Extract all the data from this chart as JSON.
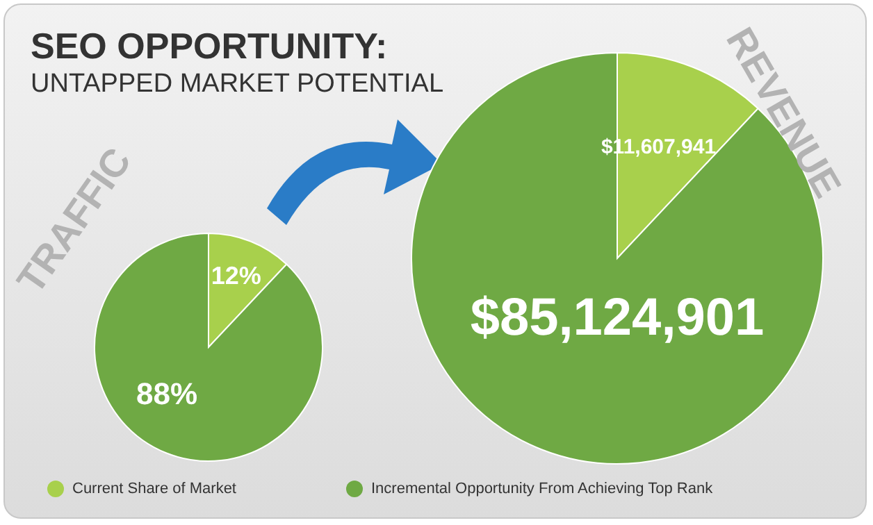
{
  "chart_data": [
    {
      "type": "pie",
      "title": "SEO OPPORTUNITY:",
      "subtitle": "UNTAPPED MARKET POTENTIAL",
      "annotations": [
        "TRAFFIC"
      ],
      "categories": [
        "Current Share of Market",
        "Incremental Opportunity From Achieving Top Rank"
      ],
      "values": [
        12,
        88
      ],
      "colors": [
        "#a8d04c",
        "#6fa944"
      ],
      "value_labels": [
        "12%",
        "88%"
      ],
      "legend": "bottom"
    },
    {
      "type": "pie",
      "annotations": [
        "REVENUE"
      ],
      "categories": [
        null,
        null
      ],
      "values": [
        11607941,
        85124901
      ],
      "colors": [
        "#a8d04c",
        "#6fa944"
      ],
      "value_labels": [
        "$11,607,941",
        "$85,124,901"
      ]
    }
  ]
}
